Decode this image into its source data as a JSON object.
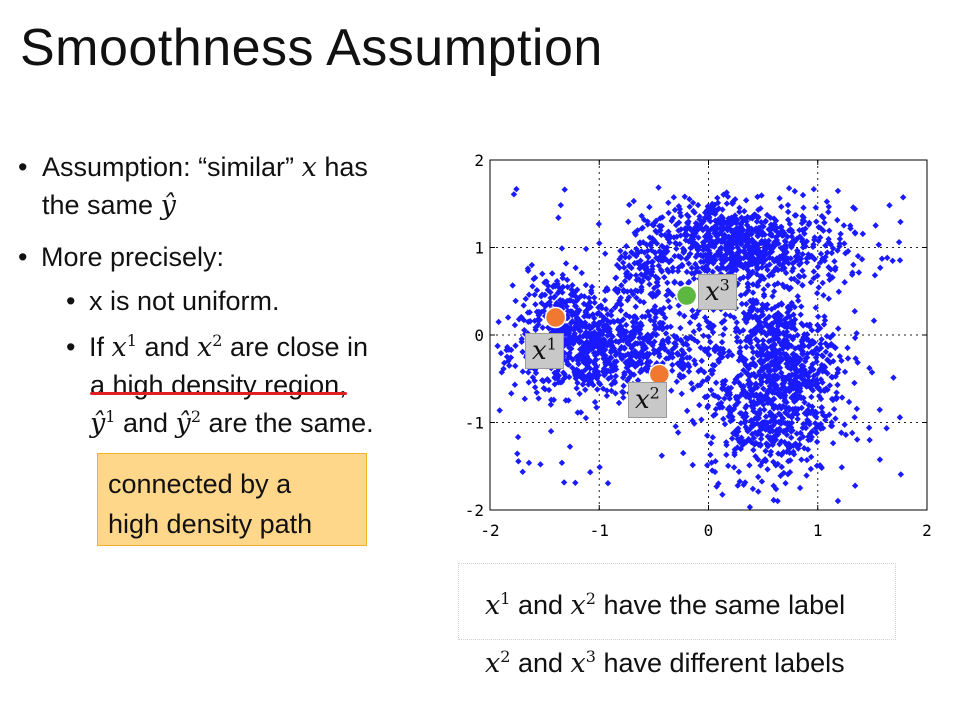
{
  "title": "Smoothness Assumption",
  "bullets": {
    "b1_pre": "Assumption: “similar”",
    "b1_var": "x",
    "b1_post": "has",
    "b1_line2_pre": "the same",
    "b1_line2_var": "ŷ",
    "b2": "More precisely:",
    "sub1": "x is not uniform.",
    "sub2_pre": "If",
    "sub2_v1": "x",
    "sub2_s1": "1",
    "sub2_and": "and",
    "sub2_v2": "x",
    "sub2_s2": "2",
    "sub2_post": "are close in",
    "sub2_line2": "a high density region,",
    "sub2_l3_v1": "ŷ",
    "sub2_l3_s1": "1",
    "sub2_l3_and": "and",
    "sub2_l3_v2": "ŷ",
    "sub2_l3_s2": "2",
    "sub2_l3_post": "are the same."
  },
  "callout": {
    "line1": "connected by a",
    "line2": "high density path"
  },
  "captions": {
    "c1_v1": "x",
    "c1_s1": "1",
    "c1_mid": "and",
    "c1_v2": "x",
    "c1_s2": "2",
    "c1_post": "have the same label",
    "c2_v1": "x",
    "c2_s1": "2",
    "c2_mid": "and",
    "c2_v2": "x",
    "c2_s2": "3",
    "c2_post": "have different labels"
  },
  "point_labels": {
    "p1_var": "x",
    "p1_sup": "1",
    "p2_var": "x",
    "p2_sup": "2",
    "p3_var": "x",
    "p3_sup": "3"
  },
  "colors": {
    "scatter": "#1a1aff",
    "orange": "#f07830",
    "green": "#5cb840",
    "red_line": "#e02020",
    "callout_bg": "#ffd78a"
  },
  "chart_data": {
    "type": "scatter",
    "xlim": [
      -2,
      2
    ],
    "ylim": [
      -2,
      2
    ],
    "xticks": [
      "-2",
      "-1",
      "0",
      "1",
      "2"
    ],
    "yticks": [
      "2",
      "1",
      "0",
      "-1",
      "-2"
    ],
    "grid": "dotted",
    "highlighted_points": [
      {
        "name": "x1",
        "x": -1.4,
        "y": 0.2,
        "color": "orange"
      },
      {
        "name": "x2",
        "x": -0.45,
        "y": -0.45,
        "color": "orange"
      },
      {
        "name": "x3",
        "x": -0.2,
        "y": 0.45,
        "color": "green"
      }
    ]
  }
}
